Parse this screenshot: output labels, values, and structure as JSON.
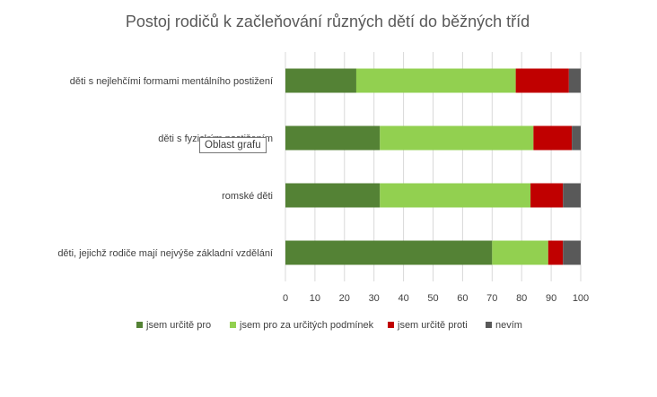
{
  "chart_data": {
    "type": "bar",
    "orientation": "horizontal",
    "stacked": true,
    "title": "Postoj rodičů k začleňování různých dětí do běžných tříd",
    "categories": [
      "děti s nejlehčími formami mentálního postižení",
      "děti s fyzickým postižením",
      "romské děti",
      "děti, jejichž rodiče mají nejvýše základní vzdělání"
    ],
    "series": [
      {
        "name": "jsem určitě pro",
        "color": "#548235",
        "values": [
          24,
          32,
          32,
          70
        ]
      },
      {
        "name": "jsem pro za určitých podmínek",
        "color": "#92D050",
        "values": [
          54,
          52,
          51,
          19
        ]
      },
      {
        "name": "jsem určitě proti",
        "color": "#C00000",
        "values": [
          18,
          13,
          11,
          5
        ]
      },
      {
        "name": "nevím",
        "color": "#595959",
        "values": [
          4,
          3,
          6,
          6
        ]
      }
    ],
    "xlim": [
      0,
      100
    ],
    "xticks": [
      0,
      10,
      20,
      30,
      40,
      50,
      60,
      70,
      80,
      90,
      100
    ],
    "grid": "vertical",
    "legend": "bottom"
  },
  "tooltip": "Oblast grafu"
}
